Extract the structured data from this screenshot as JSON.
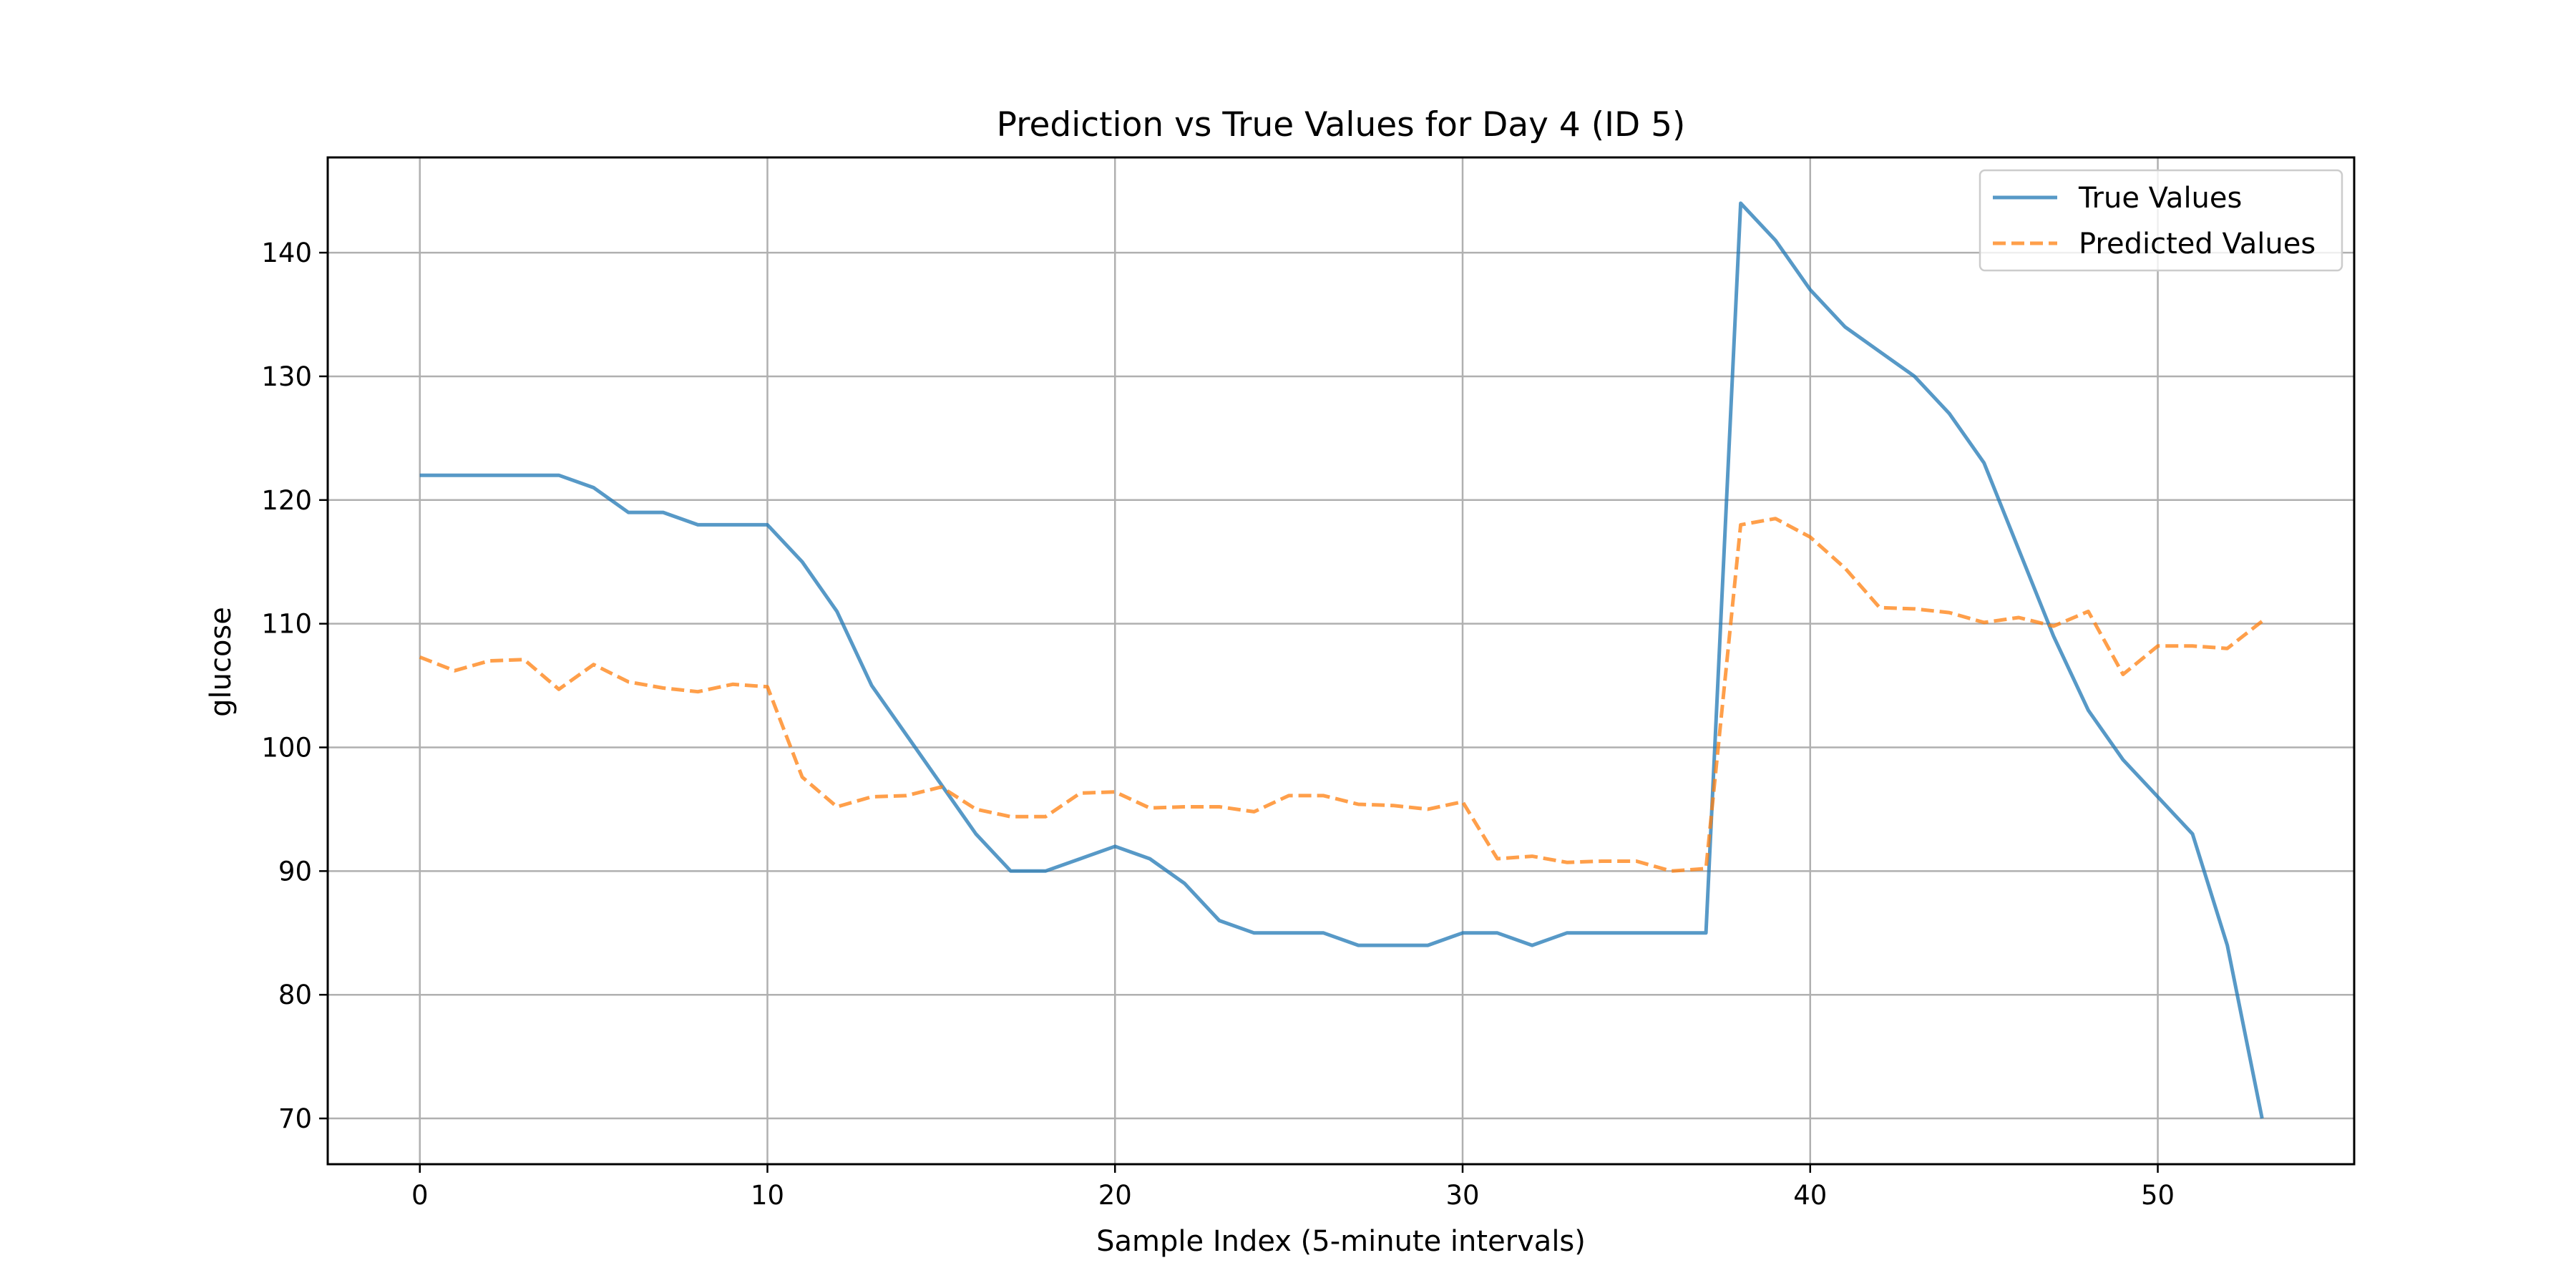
{
  "chart_data": {
    "type": "line",
    "title": "Prediction vs True Values for Day 4 (ID 5)",
    "xlabel": "Sample Index (5-minute intervals)",
    "ylabel": "glucose",
    "xlim": [
      -2.65,
      55.65
    ],
    "ylim": [
      66.3,
      147.7
    ],
    "xticks": [
      0,
      10,
      20,
      30,
      40,
      50
    ],
    "yticks": [
      70,
      80,
      90,
      100,
      110,
      120,
      130,
      140
    ],
    "grid": true,
    "legend_position": "top-right",
    "series": [
      {
        "name": "True Values",
        "color": "#1f77b4",
        "style": "solid",
        "x": [
          0,
          1,
          2,
          3,
          4,
          5,
          6,
          7,
          8,
          9,
          10,
          11,
          12,
          13,
          14,
          15,
          16,
          17,
          18,
          19,
          20,
          21,
          22,
          23,
          24,
          25,
          26,
          27,
          28,
          29,
          30,
          31,
          32,
          33,
          34,
          35,
          36,
          37,
          38,
          39,
          40,
          41,
          42,
          43,
          44,
          45,
          46,
          47,
          48,
          49,
          50,
          51,
          52,
          53
        ],
        "values": [
          122,
          122,
          122,
          122,
          122,
          121,
          119,
          119,
          118,
          118,
          118,
          115,
          111,
          105,
          101,
          97,
          93,
          90,
          90,
          91,
          92,
          91,
          89,
          86,
          85,
          85,
          85,
          84,
          84,
          84,
          85,
          85,
          84,
          85,
          85,
          85,
          85,
          85,
          144,
          141,
          137,
          134,
          132,
          130,
          127,
          123,
          116,
          109,
          103,
          99,
          96,
          93,
          84,
          70
        ]
      },
      {
        "name": "Predicted Values",
        "color": "#ff7f0e",
        "style": "dashed",
        "x": [
          0,
          1,
          2,
          3,
          4,
          5,
          6,
          7,
          8,
          9,
          10,
          11,
          12,
          13,
          14,
          15,
          16,
          17,
          18,
          19,
          20,
          21,
          22,
          23,
          24,
          25,
          26,
          27,
          28,
          29,
          30,
          31,
          32,
          33,
          34,
          35,
          36,
          37,
          38,
          39,
          40,
          41,
          42,
          43,
          44,
          45,
          46,
          47,
          48,
          49,
          50,
          51,
          52,
          53
        ],
        "values": [
          107.3,
          106.2,
          107.0,
          107.1,
          104.7,
          106.7,
          105.3,
          104.8,
          104.5,
          105.1,
          104.9,
          97.6,
          95.2,
          96.0,
          96.1,
          96.8,
          95.0,
          94.4,
          94.4,
          96.3,
          96.4,
          95.1,
          95.2,
          95.2,
          94.8,
          96.1,
          96.1,
          95.4,
          95.3,
          95.0,
          95.6,
          91.0,
          91.2,
          90.7,
          90.8,
          90.8,
          90.0,
          90.2,
          118.0,
          118.5,
          117.0,
          114.5,
          111.3,
          111.2,
          110.9,
          110.1,
          110.5,
          109.8,
          111.0,
          105.9,
          108.2,
          108.2,
          108.0,
          110.2
        ]
      }
    ]
  }
}
